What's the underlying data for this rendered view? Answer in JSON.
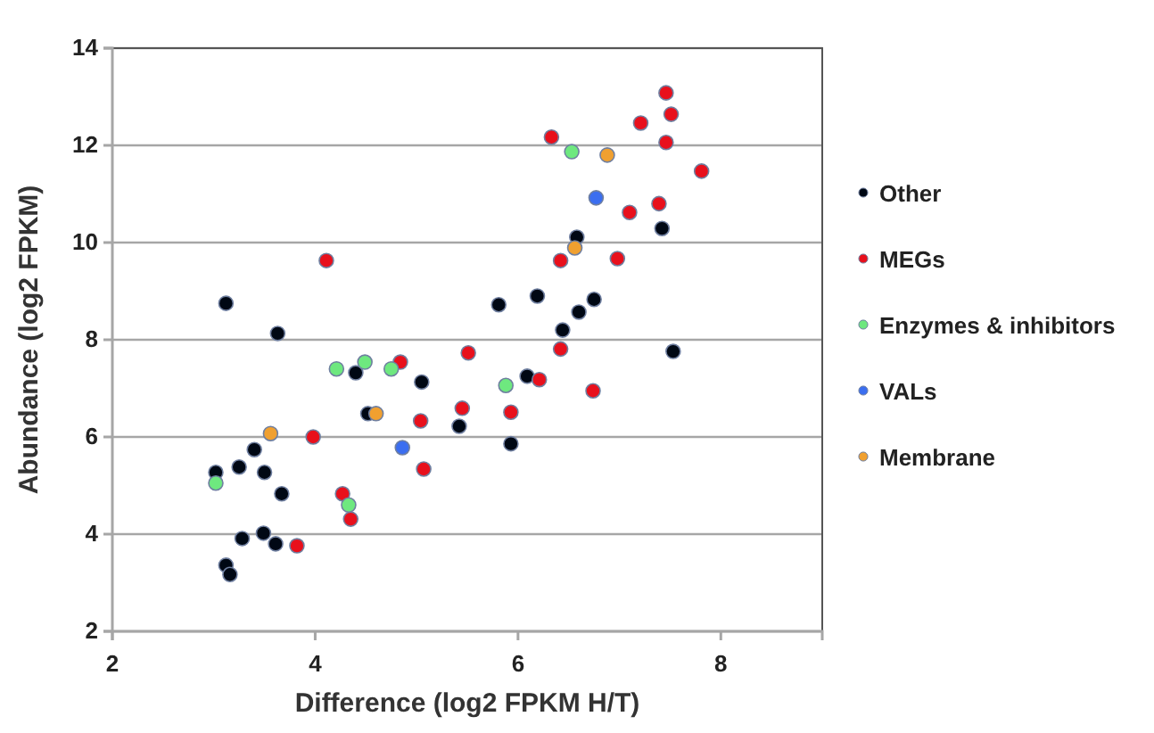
{
  "chart_data": {
    "type": "scatter",
    "xlabel": "Difference (log2 FPKM H/T)",
    "ylabel": "Abundance (log2 FPKM)",
    "xlim": [
      2,
      9
    ],
    "xticks": [
      2,
      4,
      6,
      8
    ],
    "ylim": [
      2,
      14
    ],
    "yticks": [
      2,
      4,
      6,
      8,
      10,
      12,
      14
    ],
    "grid": "y",
    "legend": "right",
    "marker": "circle",
    "series": [
      {
        "name": "Other",
        "color": "#000814",
        "x": [
          3.12,
          3.63,
          3.02,
          3.25,
          3.4,
          3.5,
          3.67,
          3.28,
          3.49,
          3.61,
          3.12,
          3.16,
          4.52,
          5.05,
          4.4,
          5.42,
          7.42,
          6.58,
          5.81,
          6.19,
          6.75,
          6.6,
          6.44,
          7.53,
          6.09,
          5.93
        ],
        "values": [
          8.75,
          8.13,
          5.27,
          5.38,
          5.74,
          5.27,
          4.83,
          3.91,
          4.02,
          3.8,
          3.36,
          3.17,
          6.48,
          7.13,
          7.32,
          6.22,
          10.29,
          10.11,
          8.72,
          8.9,
          8.83,
          8.57,
          8.2,
          7.76,
          7.25,
          5.86
        ]
      },
      {
        "name": "MEGs",
        "color": "#e8101c",
        "x": [
          4.11,
          3.98,
          4.27,
          4.35,
          3.82,
          5.04,
          5.07,
          4.84,
          5.45,
          7.46,
          7.51,
          7.21,
          7.46,
          6.33,
          7.81,
          7.1,
          7.39,
          6.42,
          6.98,
          6.42,
          5.51,
          6.21,
          6.74,
          5.93
        ],
        "values": [
          9.63,
          6.0,
          4.83,
          4.31,
          3.76,
          6.33,
          5.34,
          7.54,
          6.59,
          13.08,
          12.64,
          12.46,
          12.06,
          12.17,
          11.47,
          10.62,
          10.8,
          9.63,
          9.67,
          7.81,
          7.73,
          7.18,
          6.95,
          6.51
        ]
      },
      {
        "name": "Enzymes & inhibitors",
        "color": "#6ee87f",
        "x": [
          3.02,
          4.33,
          4.21,
          4.49,
          4.75,
          6.53,
          5.88
        ],
        "values": [
          5.05,
          4.6,
          7.4,
          7.54,
          7.4,
          11.87,
          7.06
        ]
      },
      {
        "name": "VALs",
        "color": "#3b6ef0",
        "x": [
          4.86,
          6.77
        ],
        "values": [
          5.78,
          10.92
        ]
      },
      {
        "name": "Membrane",
        "color": "#f0a030",
        "x": [
          3.56,
          4.6,
          6.88,
          6.56
        ],
        "values": [
          6.07,
          6.48,
          11.8,
          9.89
        ]
      }
    ]
  }
}
